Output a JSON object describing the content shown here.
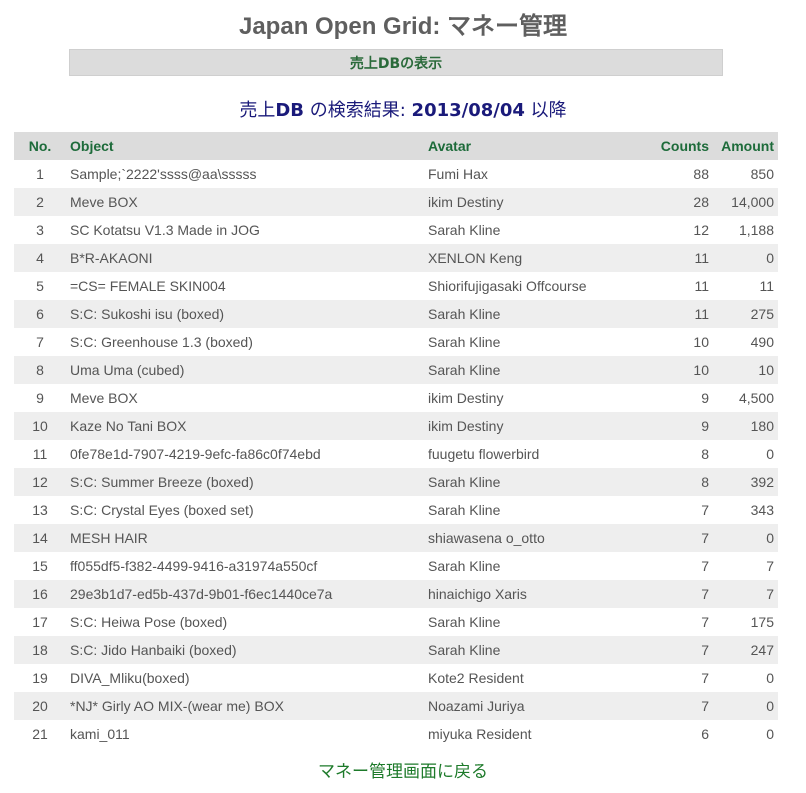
{
  "title": "Japan Open Grid: マネー管理",
  "banner_link": "売上DBの表示",
  "result": {
    "prefix": "売上",
    "db": "DB",
    "middle": " の検索結果: ",
    "date": "2013/08/04",
    "suffix": " 以降"
  },
  "table": {
    "headers": {
      "no": "No.",
      "object": "Object",
      "avatar": "Avatar",
      "counts": "Counts",
      "amount": "Amount"
    },
    "rows": [
      {
        "no": "1",
        "object": "Sample;`2222'ssss@aa\\sssss",
        "avatar": "Fumi Hax",
        "counts": "88",
        "amount": "850"
      },
      {
        "no": "2",
        "object": "Meve BOX",
        "avatar": "ikim Destiny",
        "counts": "28",
        "amount": "14,000"
      },
      {
        "no": "3",
        "object": "SC Kotatsu V1.3 Made in JOG",
        "avatar": "Sarah Kline",
        "counts": "12",
        "amount": "1,188"
      },
      {
        "no": "4",
        "object": "B*R-AKAONI",
        "avatar": "XENLON Keng",
        "counts": "11",
        "amount": "0"
      },
      {
        "no": "5",
        "object": "=CS= FEMALE SKIN004",
        "avatar": "Shiorifujigasaki Offcourse",
        "counts": "11",
        "amount": "11"
      },
      {
        "no": "6",
        "object": "S:C: Sukoshi isu (boxed)",
        "avatar": "Sarah Kline",
        "counts": "11",
        "amount": "275"
      },
      {
        "no": "7",
        "object": "S:C: Greenhouse 1.3 (boxed)",
        "avatar": "Sarah Kline",
        "counts": "10",
        "amount": "490"
      },
      {
        "no": "8",
        "object": "Uma Uma (cubed)",
        "avatar": "Sarah Kline",
        "counts": "10",
        "amount": "10"
      },
      {
        "no": "9",
        "object": "Meve BOX",
        "avatar": "ikim Destiny",
        "counts": "9",
        "amount": "4,500"
      },
      {
        "no": "10",
        "object": "Kaze No Tani BOX",
        "avatar": "ikim Destiny",
        "counts": "9",
        "amount": "180"
      },
      {
        "no": "11",
        "object": "0fe78e1d-7907-4219-9efc-fa86c0f74ebd",
        "avatar": "fuugetu flowerbird",
        "counts": "8",
        "amount": "0"
      },
      {
        "no": "12",
        "object": "S:C: Summer Breeze (boxed)",
        "avatar": "Sarah Kline",
        "counts": "8",
        "amount": "392"
      },
      {
        "no": "13",
        "object": "S:C: Crystal Eyes (boxed set)",
        "avatar": "Sarah Kline",
        "counts": "7",
        "amount": "343"
      },
      {
        "no": "14",
        "object": "MESH HAIR",
        "avatar": "shiawasena o_otto",
        "counts": "7",
        "amount": "0"
      },
      {
        "no": "15",
        "object": "ff055df5-f382-4499-9416-a31974a550cf",
        "avatar": "Sarah Kline",
        "counts": "7",
        "amount": "7"
      },
      {
        "no": "16",
        "object": "29e3b1d7-ed5b-437d-9b01-f6ec1440ce7a",
        "avatar": "hinaichigo Xaris",
        "counts": "7",
        "amount": "7"
      },
      {
        "no": "17",
        "object": "S:C: Heiwa Pose (boxed)",
        "avatar": "Sarah Kline",
        "counts": "7",
        "amount": "175"
      },
      {
        "no": "18",
        "object": "S:C: Jido Hanbaiki (boxed)",
        "avatar": "Sarah Kline",
        "counts": "7",
        "amount": "247"
      },
      {
        "no": "19",
        "object": "DIVA_Mliku(boxed)",
        "avatar": "Kote2 Resident",
        "counts": "7",
        "amount": "0"
      },
      {
        "no": "20",
        "object": "*NJ* Girly AO MIX-(wear me) BOX",
        "avatar": "Noazami Juriya",
        "counts": "7",
        "amount": "0"
      },
      {
        "no": "21",
        "object": "kami_011",
        "avatar": "miyuka Resident",
        "counts": "6",
        "amount": "0"
      }
    ]
  },
  "back_link": "マネー管理画面に戻る"
}
